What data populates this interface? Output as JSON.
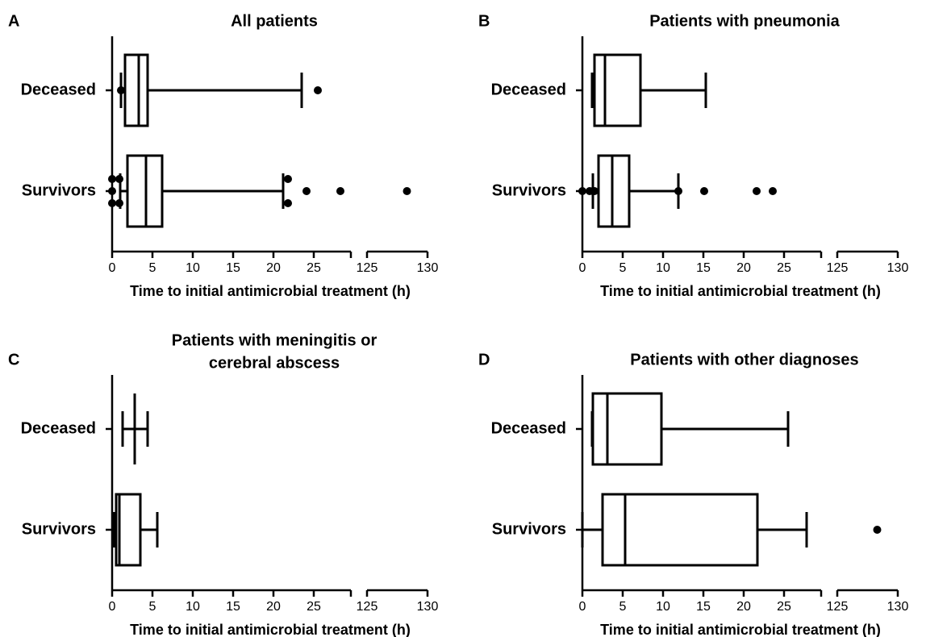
{
  "chart_data": [
    {
      "type": "box",
      "label": "A",
      "title": [
        "All patients"
      ],
      "categories": [
        "Deceased",
        "Survivors"
      ],
      "boxes": [
        {
          "whisker_low": 1.1,
          "q1": 1.6,
          "median": 3.3,
          "q3": 4.4,
          "whisker_high": 23.5,
          "outliers": [
            1.1,
            25.5
          ]
        },
        {
          "whisker_low": 1.0,
          "q1": 1.9,
          "median": 4.2,
          "q3": 6.2,
          "whisker_high": 21.2,
          "outliers": [
            0,
            0,
            0,
            0.9,
            0.9,
            21.8,
            21.8,
            24.1,
            28.3,
            128.3
          ]
        }
      ],
      "xlim": [
        0,
        130
      ],
      "xbreak": [
        29.6,
        125
      ],
      "xticks": [
        0,
        5,
        10,
        15,
        20,
        25,
        125,
        130
      ],
      "xlabel": "Time to initial antimicrobial treatment (h)"
    },
    {
      "type": "box",
      "label": "B",
      "title": [
        "Patients with pneumonia"
      ],
      "categories": [
        "Deceased",
        "Survivors"
      ],
      "boxes": [
        {
          "whisker_low": 1.2,
          "q1": 1.5,
          "median": 2.8,
          "q3": 7.2,
          "whisker_high": 15.3,
          "outliers": []
        },
        {
          "whisker_low": 1.3,
          "q1": 2.0,
          "median": 3.7,
          "q3": 5.8,
          "whisker_high": 11.9,
          "outliers": [
            0,
            0.9,
            1.3,
            1.5,
            11.9,
            15.1,
            21.6,
            23.6
          ]
        }
      ],
      "xlim": [
        0,
        130
      ],
      "xbreak": [
        29.6,
        125
      ],
      "xticks": [
        0,
        5,
        10,
        15,
        20,
        25,
        125,
        130
      ],
      "xlabel": "Time to initial antimicrobial treatment (h)"
    },
    {
      "type": "box",
      "label": "C",
      "title": [
        "Patients with meningitis or",
        "cerebral abscess"
      ],
      "categories": [
        "Deceased",
        "Survivors"
      ],
      "boxes": [
        {
          "whisker_low": 1.3,
          "q1": 2.8,
          "median": 2.8,
          "q3": 2.8,
          "whisker_high": 4.4,
          "outliers": []
        },
        {
          "whisker_low": 0.2,
          "q1": 0.5,
          "median": 0.9,
          "q3": 3.5,
          "whisker_high": 5.6,
          "outliers": []
        }
      ],
      "xlim": [
        0,
        130
      ],
      "xbreak": [
        29.6,
        125
      ],
      "xticks": [
        0,
        5,
        10,
        15,
        20,
        25,
        125,
        130
      ],
      "xlabel": "Time to initial antimicrobial treatment (h)"
    },
    {
      "type": "box",
      "label": "D",
      "title": [
        "Patients with other diagnoses"
      ],
      "categories": [
        "Deceased",
        "Survivors"
      ],
      "boxes": [
        {
          "whisker_low": 1.2,
          "q1": 1.3,
          "median": 3.1,
          "q3": 9.8,
          "whisker_high": 25.5,
          "outliers": []
        },
        {
          "whisker_low": 0,
          "q1": 2.5,
          "median": 5.3,
          "q3": 21.7,
          "whisker_high": 27.8,
          "outliers": [
            128.3
          ]
        }
      ],
      "xlim": [
        0,
        130
      ],
      "xbreak": [
        29.6,
        125
      ],
      "xticks": [
        0,
        5,
        10,
        15,
        20,
        25,
        125,
        130
      ],
      "xlabel": "Time to initial antimicrobial treatment (h)"
    }
  ]
}
